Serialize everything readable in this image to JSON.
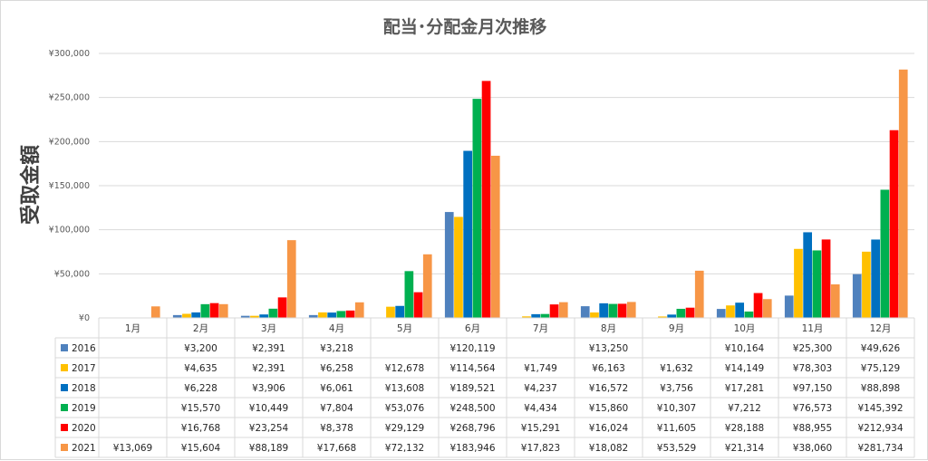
{
  "chart_data": {
    "type": "bar",
    "title": "配当･分配金月次推移",
    "ylabel": "受取金額",
    "xlabel": "",
    "ylim": [
      0,
      300000
    ],
    "yticks": [
      0,
      50000,
      100000,
      150000,
      200000,
      250000,
      300000
    ],
    "ytick_labels": [
      "¥0",
      "¥50,000",
      "¥100,000",
      "¥150,000",
      "¥200,000",
      "¥250,000",
      "¥300,000"
    ],
    "grid": true,
    "legend": "bottom data table",
    "categories": [
      "1月",
      "2月",
      "3月",
      "4月",
      "5月",
      "6月",
      "7月",
      "8月",
      "9月",
      "10月",
      "11月",
      "12月"
    ],
    "series": [
      {
        "name": "2016",
        "color": "#4f81bd",
        "values": [
          null,
          3200,
          2391,
          3218,
          null,
          120119,
          null,
          13250,
          null,
          10164,
          25300,
          49626
        ],
        "labels": [
          "",
          "¥3,200",
          "¥2,391",
          "¥3,218",
          "",
          "¥120,119",
          "",
          "¥13,250",
          "",
          "¥10,164",
          "¥25,300",
          "¥49,626"
        ]
      },
      {
        "name": "2017",
        "color": "#ffc000",
        "values": [
          null,
          4635,
          2391,
          6258,
          12678,
          114564,
          1749,
          6163,
          1632,
          14149,
          78303,
          75129
        ],
        "labels": [
          "",
          "¥4,635",
          "¥2,391",
          "¥6,258",
          "¥12,678",
          "¥114,564",
          "¥1,749",
          "¥6,163",
          "¥1,632",
          "¥14,149",
          "¥78,303",
          "¥75,129"
        ]
      },
      {
        "name": "2018",
        "color": "#0070c0",
        "values": [
          null,
          6228,
          3906,
          6061,
          13608,
          189521,
          4237,
          16572,
          3756,
          17281,
          97150,
          88898
        ],
        "labels": [
          "",
          "¥6,228",
          "¥3,906",
          "¥6,061",
          "¥13,608",
          "¥189,521",
          "¥4,237",
          "¥16,572",
          "¥3,756",
          "¥17,281",
          "¥97,150",
          "¥88,898"
        ]
      },
      {
        "name": "2019",
        "color": "#00b050",
        "values": [
          null,
          15570,
          10449,
          7804,
          53076,
          248500,
          4434,
          15860,
          10307,
          7212,
          76573,
          145392
        ],
        "labels": [
          "",
          "¥15,570",
          "¥10,449",
          "¥7,804",
          "¥53,076",
          "¥248,500",
          "¥4,434",
          "¥15,860",
          "¥10,307",
          "¥7,212",
          "¥76,573",
          "¥145,392"
        ]
      },
      {
        "name": "2020",
        "color": "#ff0000",
        "values": [
          null,
          16768,
          23254,
          8378,
          29129,
          268796,
          15291,
          16024,
          11605,
          28188,
          88955,
          212934
        ],
        "labels": [
          "",
          "¥16,768",
          "¥23,254",
          "¥8,378",
          "¥29,129",
          "¥268,796",
          "¥15,291",
          "¥16,024",
          "¥11,605",
          "¥28,188",
          "¥88,955",
          "¥212,934"
        ]
      },
      {
        "name": "2021",
        "color": "#f79646",
        "values": [
          13069,
          15604,
          88189,
          17668,
          72132,
          183946,
          17823,
          18082,
          53529,
          21314,
          38060,
          281734
        ],
        "labels": [
          "¥13,069",
          "¥15,604",
          "¥88,189",
          "¥17,668",
          "¥72,132",
          "¥183,946",
          "¥17,823",
          "¥18,082",
          "¥53,529",
          "¥21,314",
          "¥38,060",
          "¥281,734"
        ]
      }
    ]
  }
}
